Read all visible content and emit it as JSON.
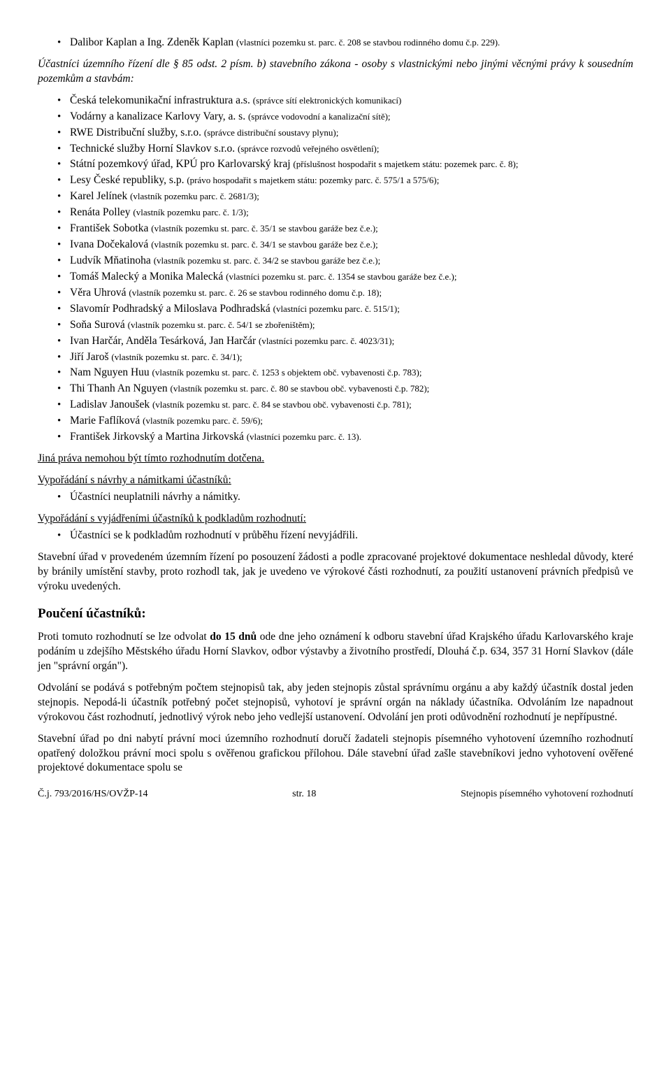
{
  "topBullets": [
    {
      "main": "Dalibor Kaplan a Ing. Zdeněk Kaplan ",
      "small": "(vlastníci pozemku st. parc. č. 208 se stavbou rodinného domu č.p. 229)."
    }
  ],
  "lead": "Účastníci územního řízení dle § 85 odst. 2 písm. b) stavebního zákona - osoby s vlastnickými nebo jinými věcnými právy k sousedním pozemkům a stavbám:",
  "mainBullets": [
    {
      "main": "Česká telekomunikační infrastruktura a.s. ",
      "small": "(správce sítí elektronických komunikací)"
    },
    {
      "main": "Vodárny a kanalizace Karlovy Vary, a. s. ",
      "small": "(správce vodovodní a kanalizační sítě);"
    },
    {
      "main": "RWE Distribuční služby, s.r.o. ",
      "small": "(správce distribuční soustavy plynu);"
    },
    {
      "main": "Technické služby Horní Slavkov s.r.o. ",
      "small": "(správce rozvodů veřejného osvětlení);"
    },
    {
      "main": "Státní pozemkový úřad, KPÚ pro Karlovarský kraj ",
      "small": "(příslušnost hospodařit s majetkem státu: pozemek parc. č. 8);"
    },
    {
      "main": "Lesy České republiky, s.p. ",
      "small": "(právo hospodařit s majetkem státu: pozemky parc. č. 575/1 a 575/6);"
    },
    {
      "main": "Karel Jelínek ",
      "small": "(vlastník pozemku parc. č. 2681/3);"
    },
    {
      "main": "Renáta Polley ",
      "small": "(vlastník pozemku parc. č. 1/3);"
    },
    {
      "main": "František Sobotka ",
      "small": "(vlastník pozemku st. parc. č. 35/1 se stavbou garáže bez č.e.);"
    },
    {
      "main": "Ivana Dočekalová ",
      "small": "(vlastník pozemku st. parc. č. 34/1 se stavbou garáže bez č.e.);"
    },
    {
      "main": "Ludvík Mňatinoha ",
      "small": "(vlastník pozemku st. parc. č. 34/2 se stavbou garáže bez č.e.);"
    },
    {
      "main": "Tomáš Malecký a Monika Malecká ",
      "small": "(vlastníci pozemku st. parc. č. 1354 se stavbou garáže bez č.e.);"
    },
    {
      "main": "Věra Uhrová ",
      "small": "(vlastník pozemku st. parc. č. 26 se stavbou rodinného domu č.p. 18);"
    },
    {
      "main": "Slavomír Podhradský a Miloslava Podhradská ",
      "small": "(vlastníci pozemku parc. č. 515/1);"
    },
    {
      "main": "Soňa Surová ",
      "small": "(vlastník pozemku st. parc. č. 54/1 se zbořeništěm);"
    },
    {
      "main": "Ivan Harčár, Anděla Tesárková, Jan Harčár ",
      "small": "(vlastníci pozemku parc. č. 4023/31);"
    },
    {
      "main": "Jiří Jaroš ",
      "small": "(vlastník pozemku st. parc. č. 34/1);"
    },
    {
      "main": "Nam Nguyen Huu ",
      "small": "(vlastník pozemku st. parc. č. 1253 s objektem obč. vybavenosti č.p. 783);"
    },
    {
      "main": "Thi Thanh An Nguyen ",
      "small": "(vlastník pozemku st. parc. č. 80 se stavbou obč. vybavenosti č.p. 782);"
    },
    {
      "main": "Ladislav Janoušek ",
      "small": "(vlastník pozemku st. parc. č. 84 se stavbou obč. vybavenosti č.p. 781);"
    },
    {
      "main": "Marie Faflíková ",
      "small": "(vlastník pozemku parc. č. 59/6);"
    },
    {
      "main": "František Jirkovský a Martina Jirkovská ",
      "small": "(vlastníci pozemku parc. č. 13)."
    }
  ],
  "headings": {
    "jina": "Jiná práva nemohou být tímto rozhodnutím dotčena.",
    "vypor1": "Vypořádání s návrhy a námitkami účastníků:",
    "vypor1Item": "Účastníci neuplatnili návrhy a námitky.",
    "vypor2": "Vypořádání s vyjádřeními účastníků k podkladům rozhodnutí:",
    "vypor2Item": "Účastníci se k podkladům rozhodnutí v průběhu řízení nevyjádřili.",
    "paraA": "Stavební úřad v provedeném územním řízení po posouzení žádosti a podle zpracované projektové dokumentace neshledal důvody, které by bránily umístění stavby, proto rozhodl tak, jak je uvedeno ve výrokové části rozhodnutí, za použití ustanovení právních předpisů ve výroku uvedených.",
    "pouceni": "Poučení účastníků:",
    "paraB": "Proti tomuto rozhodnutí se lze odvolat do 15 dnů ode dne jeho oznámení k odboru stavební úřad Krajského úřadu Karlovarského kraje podáním u zdejšího Městského úřadu Horní Slavkov, odbor výstavby a životního prostředí, Dlouhá č.p. 634, 357 31 Horní Slavkov (dále jen \"správní orgán\").",
    "paraB_pre": "Proti tomuto rozhodnutí se lze odvolat ",
    "paraB_bold": "do 15 dnů",
    "paraB_post": " ode dne jeho oznámení k odboru stavební úřad Krajského úřadu Karlovarského kraje podáním u zdejšího Městského úřadu Horní Slavkov, odbor výstavby a životního prostředí, Dlouhá č.p. 634, 357 31 Horní Slavkov (dále jen \"správní orgán\").",
    "paraC": "Odvolání se podává s potřebným počtem stejnopisů tak, aby jeden stejnopis zůstal správnímu orgánu a aby každý účastník dostal jeden stejnopis. Nepodá-li účastník potřebný počet stejnopisů, vyhotoví je správní orgán na náklady účastníka. Odvoláním lze napadnout výrokovou část rozhodnutí, jednotlivý výrok nebo jeho vedlejší ustanovení. Odvolání jen proti odůvodnění rozhodnutí je nepřípustné.",
    "paraD": "Stavební úřad po dni nabytí právní moci územního rozhodnutí doručí žadateli stejnopis písemného vyhotovení územního rozhodnutí opatřený doložkou právní moci spolu s ověřenou grafickou přílohou. Dále stavební úřad zašle stavebníkovi jedno vyhotovení ověřené projektové dokumentace spolu se"
  },
  "footer": {
    "left": "Č.j. 793/2016/HS/OVŽP-14",
    "center": "str. 18",
    "right": "Stejnopis písemného vyhotovení rozhodnutí"
  }
}
